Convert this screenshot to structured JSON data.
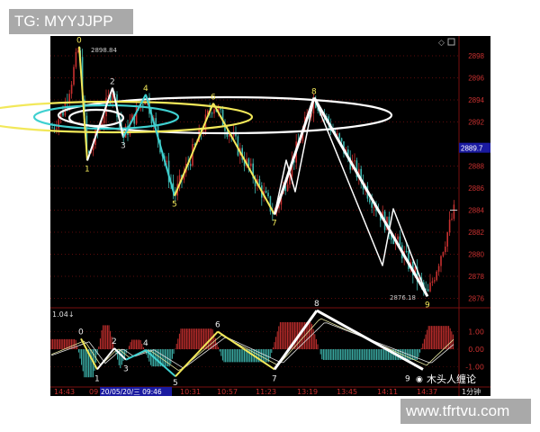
{
  "watermarks": {
    "top_left": "TG: MYYJJPP",
    "bottom_right": "www.tfrtvu.com",
    "wechat": "木头人缠论"
  },
  "colors": {
    "background": "#000000",
    "up": "#c8302f",
    "down": "#3fb8b0",
    "grid": "#7a1010",
    "axis_text": "#c8302f",
    "highlight": "#1a1aa0",
    "yellow": "#f2e85a",
    "cyan": "#3fd0d0",
    "white": "#ffffff"
  },
  "chart_data": [
    {
      "type": "candlestick",
      "panel": "price",
      "y_ticks": [
        2898,
        2896,
        2894,
        2892,
        2888,
        2886,
        2884,
        2882,
        2880,
        2878,
        2876
      ],
      "ylim": [
        2875,
        2899
      ],
      "current_price_label": "2889.7",
      "high_label": "2898.84",
      "low_label": "2876.18",
      "wave_points": [
        {
          "label": "0",
          "price": 2898.84
        },
        {
          "label": "1",
          "price": 2888.5
        },
        {
          "label": "2",
          "price": 2895.1
        },
        {
          "label": "3",
          "price": 2890.6
        },
        {
          "label": "4",
          "price": 2894.5
        },
        {
          "label": "5",
          "price": 2885.3
        },
        {
          "label": "6",
          "price": 2893.7
        },
        {
          "label": "7",
          "price": 2883.6
        },
        {
          "label": "8",
          "price": 2894.2
        },
        {
          "label": "9",
          "price": 2876.18
        }
      ],
      "grid": true
    },
    {
      "type": "bar",
      "panel": "macd",
      "indicator_label": "1.04↓",
      "y_ticks": [
        "1.00",
        "0.00",
        "-1.00"
      ],
      "wave_points": [
        {
          "label": "0",
          "value": 0.6
        },
        {
          "label": "1",
          "value": -1.15
        },
        {
          "label": "2",
          "value": 0.05
        },
        {
          "label": "3",
          "value": -0.6
        },
        {
          "label": "4",
          "value": -0.05
        },
        {
          "label": "5",
          "value": -1.55
        },
        {
          "label": "6",
          "value": 1.0
        },
        {
          "label": "7",
          "value": -1.15
        },
        {
          "label": "8",
          "value": 2.2
        },
        {
          "label": "9",
          "value": -1.15
        }
      ]
    }
  ],
  "time_axis": {
    "ticks": [
      "14:43",
      "09",
      "10:31",
      "10:57",
      "11:23",
      "13:19",
      "13:45",
      "14:11",
      "14:37"
    ],
    "cursor_label": "20/05/20/三 09:46",
    "period": "1分钟"
  }
}
